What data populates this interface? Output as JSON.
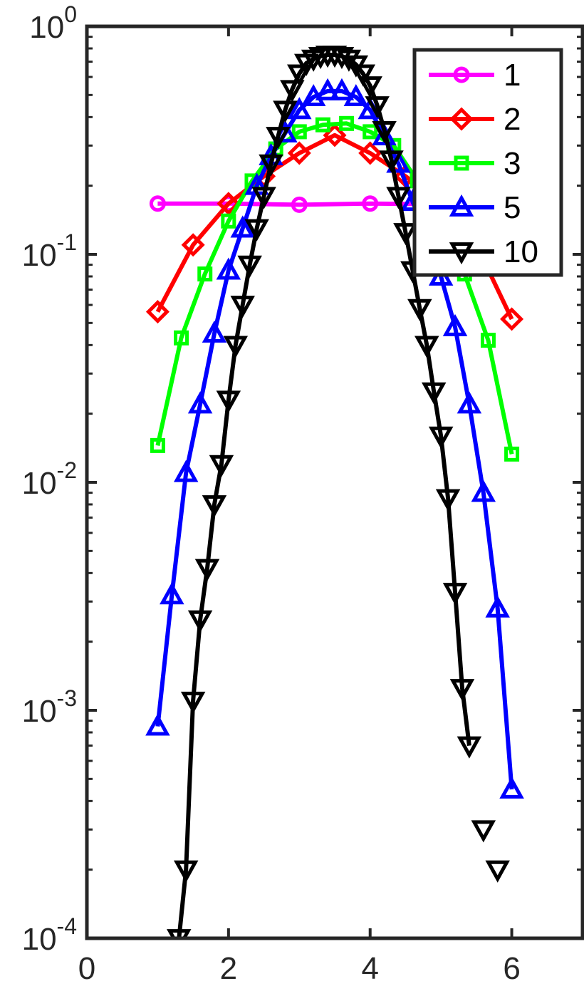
{
  "chart_data": {
    "type": "line",
    "title": "",
    "xlabel": "",
    "ylabel": "",
    "xlim": [
      0,
      7
    ],
    "ylim": [
      0.0001,
      1
    ],
    "yscale": "log",
    "grid": false,
    "legend_position": "top-right",
    "x_ticks": [
      "0",
      "2",
      "4",
      "6"
    ],
    "y_ticks": [
      {
        "base": "10",
        "exp": "-4"
      },
      {
        "base": "10",
        "exp": "-3"
      },
      {
        "base": "10",
        "exp": "-2"
      },
      {
        "base": "10",
        "exp": "-1"
      },
      {
        "base": "10",
        "exp": "0"
      }
    ],
    "series": [
      {
        "name": "1",
        "color": "#ff00ff",
        "marker": "circle",
        "x": [
          1,
          2,
          3,
          4,
          5,
          6
        ],
        "y": [
          0.167,
          0.167,
          0.165,
          0.167,
          0.166,
          0.166
        ]
      },
      {
        "name": "2",
        "color": "#ff0000",
        "marker": "diamond",
        "x": [
          1,
          1.5,
          2,
          2.5,
          3,
          3.5,
          4,
          4.5,
          5,
          5.5,
          6
        ],
        "y": [
          0.056,
          0.11,
          0.167,
          0.22,
          0.278,
          0.333,
          0.278,
          0.22,
          0.167,
          0.11,
          0.052
        ]
      },
      {
        "name": "3",
        "color": "#00ff00",
        "marker": "square",
        "x": [
          1,
          1.333,
          1.667,
          2,
          2.333,
          2.667,
          3,
          3.333,
          3.667,
          4,
          4.333,
          4.667,
          5,
          5.333,
          5.667,
          6
        ],
        "y": [
          0.0145,
          0.043,
          0.082,
          0.14,
          0.21,
          0.29,
          0.345,
          0.37,
          0.375,
          0.345,
          0.3,
          0.21,
          0.14,
          0.082,
          0.042,
          0.0133
        ]
      },
      {
        "name": "5",
        "color": "#0000ff",
        "marker": "triangle-up",
        "x": [
          1,
          1.2,
          1.4,
          1.6,
          1.8,
          2,
          2.2,
          2.4,
          2.6,
          2.8,
          3,
          3.2,
          3.4,
          3.6,
          3.8,
          4,
          4.2,
          4.4,
          4.6,
          4.8,
          5,
          5.2,
          5.4,
          5.6,
          5.8,
          6
        ],
        "y": [
          0.00085,
          0.0032,
          0.011,
          0.022,
          0.045,
          0.085,
          0.13,
          0.2,
          0.27,
          0.34,
          0.43,
          0.49,
          0.52,
          0.52,
          0.49,
          0.43,
          0.33,
          0.25,
          0.17,
          0.12,
          0.08,
          0.048,
          0.022,
          0.009,
          0.0028,
          0.00045
        ]
      },
      {
        "name": "10",
        "color": "#000000",
        "marker": "triangle-down",
        "x": [
          1.3,
          1.4,
          1.5,
          1.6,
          1.7,
          1.8,
          1.9,
          2.0,
          2.1,
          2.2,
          2.3,
          2.4,
          2.5,
          2.6,
          2.7,
          2.8,
          2.9,
          3.0,
          3.1,
          3.2,
          3.3,
          3.4,
          3.5,
          3.6,
          3.7,
          3.8,
          3.9,
          4.0,
          4.1,
          4.2,
          4.3,
          4.4,
          4.5,
          4.6,
          4.7,
          4.8,
          4.9,
          5.0,
          5.1,
          5.2,
          5.3,
          5.4
        ],
        "y": [
          0.0001,
          0.0002,
          0.0011,
          0.0025,
          0.0042,
          0.008,
          0.012,
          0.023,
          0.04,
          0.06,
          0.09,
          0.13,
          0.18,
          0.25,
          0.33,
          0.43,
          0.53,
          0.62,
          0.69,
          0.72,
          0.74,
          0.75,
          0.75,
          0.74,
          0.72,
          0.68,
          0.62,
          0.55,
          0.45,
          0.35,
          0.26,
          0.18,
          0.125,
          0.085,
          0.058,
          0.04,
          0.025,
          0.016,
          0.0085,
          0.0033,
          0.00125,
          0.0007
        ]
      }
    ],
    "extra_points": [
      {
        "series": "10",
        "x": 5.6,
        "y": 0.0003
      },
      {
        "series": "10",
        "x": 5.8,
        "y": 0.0002
      }
    ]
  }
}
